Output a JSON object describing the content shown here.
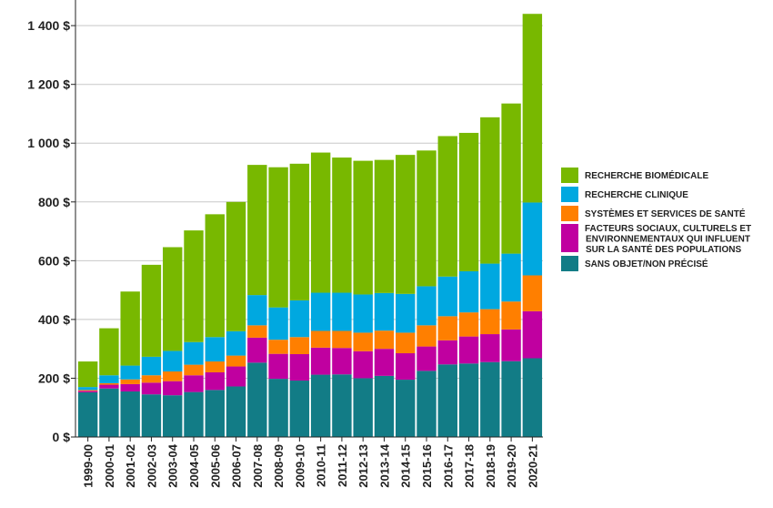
{
  "chart_data": {
    "type": "bar",
    "stacked": true,
    "title": "",
    "xlabel": "",
    "ylabel": "",
    "ylim": [
      0,
      1450
    ],
    "y_ticks": [
      0,
      200,
      400,
      600,
      800,
      1000,
      1200,
      1400
    ],
    "y_tick_labels": [
      "0 $",
      "200 $",
      "400 $",
      "600 $",
      "800 $",
      "1 000 $",
      "1 200 $",
      "1 400 $"
    ],
    "grid": "horizontal",
    "legend_position": "right",
    "categories": [
      "1999-00",
      "2000-01",
      "2001-02",
      "2002-03",
      "2003-04",
      "2004-05",
      "2005-06",
      "2006-07",
      "2007-08",
      "2008-09",
      "2009-10",
      "2010-11",
      "2011-12",
      "2012-13",
      "2013-14",
      "2014-15",
      "2015-16",
      "2016-17",
      "2017-18",
      "2018-19",
      "2019-20",
      "2020-21"
    ],
    "series": [
      {
        "name": "SANS OBJET/NON PRÉCISÉ",
        "color": "#127c86",
        "values": [
          152,
          165,
          155,
          145,
          142,
          153,
          160,
          172,
          253,
          198,
          192,
          212,
          213,
          200,
          208,
          195,
          225,
          247,
          250,
          255,
          258,
          268
        ]
      },
      {
        "name": "FACTEURS SOCIAUX, CULTURELS ET ENVIRONNEMENTAUX QUI INFLUENT SUR LA SANTÉ DES POPULATIONS",
        "color": "#c000a0",
        "values": [
          5,
          13,
          25,
          40,
          48,
          57,
          60,
          68,
          85,
          85,
          90,
          92,
          90,
          92,
          92,
          90,
          83,
          82,
          92,
          95,
          108,
          160
        ]
      },
      {
        "name": "SYSTÈMES ET SERVICES DE SANTÉ",
        "color": "#ff7f00",
        "values": [
          3,
          5,
          16,
          25,
          33,
          36,
          37,
          37,
          42,
          48,
          58,
          57,
          58,
          63,
          62,
          70,
          72,
          82,
          82,
          85,
          95,
          122
        ]
      },
      {
        "name": "RECHERCHE CLINIQUE",
        "color": "#00a8e0",
        "values": [
          10,
          27,
          47,
          63,
          70,
          77,
          83,
          83,
          103,
          110,
          125,
          130,
          130,
          130,
          128,
          132,
          133,
          135,
          140,
          155,
          163,
          248
        ]
      },
      {
        "name": "RECHERCHE BIOMÉDICALE",
        "color": "#78b800",
        "values": [
          87,
          160,
          252,
          313,
          353,
          380,
          418,
          440,
          443,
          477,
          465,
          477,
          460,
          455,
          453,
          473,
          462,
          478,
          471,
          498,
          511,
          642
        ]
      }
    ]
  }
}
